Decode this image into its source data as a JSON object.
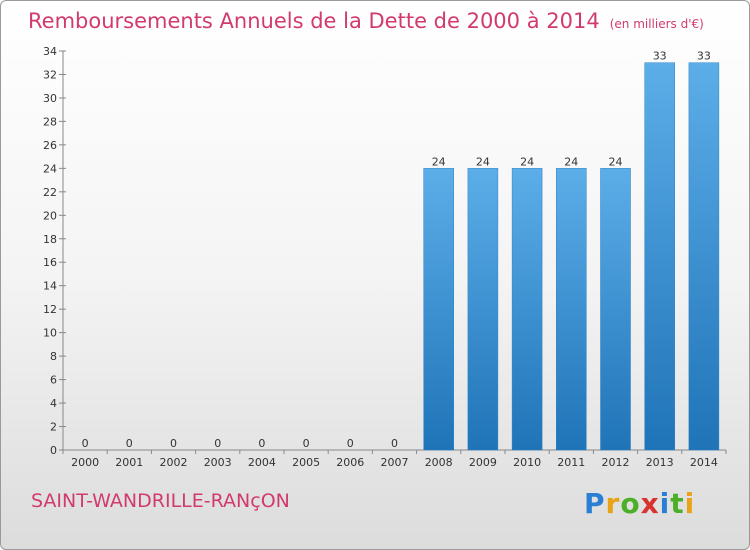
{
  "header": {
    "title": "Remboursements Annuels de la Dette de 2000 à 2014",
    "unit": "(en milliers d'€)"
  },
  "footer": {
    "commune": "SAINT-WANDRILLE-RANçON",
    "logo_letters": [
      "P",
      "r",
      "o",
      "x",
      "i",
      "t",
      "i"
    ],
    "logo_colors": [
      "#2a7fd4",
      "#e8a317",
      "#4caf28",
      "#d8312e",
      "#2a7fd4",
      "#4caf28",
      "#e8a317"
    ]
  },
  "chart_data": {
    "type": "bar",
    "title": "Remboursements Annuels de la Dette de 2000 à 2014",
    "subtitle": "(en milliers d'€)",
    "xlabel": "",
    "ylabel": "",
    "categories": [
      "2000",
      "2001",
      "2002",
      "2003",
      "2004",
      "2005",
      "2006",
      "2007",
      "2008",
      "2009",
      "2010",
      "2011",
      "2012",
      "2013",
      "2014"
    ],
    "values": [
      0,
      0,
      0,
      0,
      0,
      0,
      0,
      0,
      24,
      24,
      24,
      24,
      24,
      33,
      33
    ],
    "ylim": [
      0,
      34
    ],
    "yticks": [
      0,
      2,
      4,
      6,
      8,
      10,
      12,
      14,
      16,
      18,
      20,
      22,
      24,
      26,
      28,
      30,
      32,
      34
    ],
    "grid": false,
    "legend": "none",
    "bar_color": "#3a8fd6"
  }
}
